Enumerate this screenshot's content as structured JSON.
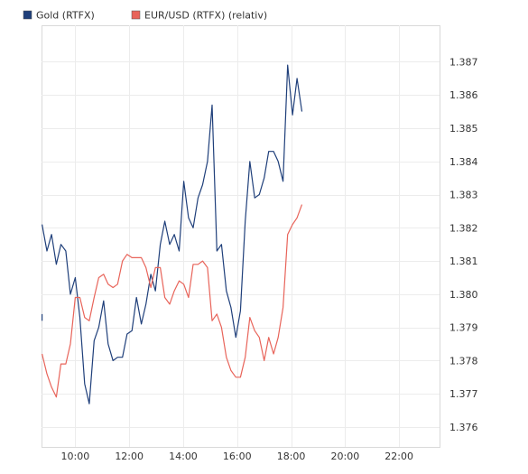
{
  "chart_data": {
    "type": "line",
    "title": "",
    "xlabel": "",
    "ylabel": "",
    "legend_position": "top-left",
    "grid": true,
    "xlim": [
      8.75,
      23.5
    ],
    "ylim": [
      1.3754,
      1.3881
    ],
    "x_ticks": [
      10,
      12,
      14,
      16,
      18,
      20,
      22
    ],
    "x_tick_labels": [
      "10:00",
      "12:00",
      "14:00",
      "16:00",
      "18:00",
      "20:00",
      "22:00"
    ],
    "y_ticks": [
      1.376,
      1.377,
      1.378,
      1.379,
      1.38,
      1.381,
      1.382,
      1.383,
      1.384,
      1.385,
      1.386,
      1.387
    ],
    "y_tick_labels": [
      "1.376",
      "1.377",
      "1.378",
      "1.379",
      "1.380",
      "1.381",
      "1.382",
      "1.383",
      "1.384",
      "1.385",
      "1.386",
      "1.387"
    ],
    "series": [
      {
        "name": "Gold (RTFX)",
        "color": "#1f3f7a",
        "segments": [
          [
            [
              8.77,
              1.3792
            ],
            [
              8.77,
              1.3794
            ]
          ],
          [
            [
              8.77,
              1.3821
            ],
            [
              8.95,
              1.3813
            ],
            [
              9.12,
              1.3818
            ],
            [
              9.3,
              1.3809
            ],
            [
              9.47,
              1.3815
            ],
            [
              9.65,
              1.3813
            ],
            [
              9.82,
              1.38
            ],
            [
              10.0,
              1.3805
            ],
            [
              10.17,
              1.3793
            ],
            [
              10.35,
              1.3773
            ],
            [
              10.52,
              1.3767
            ],
            [
              10.7,
              1.3786
            ],
            [
              10.87,
              1.379
            ],
            [
              11.05,
              1.3798
            ],
            [
              11.22,
              1.3785
            ],
            [
              11.4,
              1.378
            ],
            [
              11.57,
              1.3781
            ],
            [
              11.75,
              1.3781
            ],
            [
              11.92,
              1.3788
            ],
            [
              12.1,
              1.3789
            ],
            [
              12.27,
              1.3799
            ],
            [
              12.45,
              1.3791
            ],
            [
              12.62,
              1.3797
            ],
            [
              12.8,
              1.3806
            ],
            [
              12.97,
              1.3801
            ],
            [
              13.15,
              1.3815
            ],
            [
              13.32,
              1.3822
            ],
            [
              13.5,
              1.3815
            ],
            [
              13.67,
              1.3818
            ],
            [
              13.85,
              1.3813
            ],
            [
              14.02,
              1.3834
            ],
            [
              14.2,
              1.3823
            ],
            [
              14.37,
              1.382
            ],
            [
              14.55,
              1.3829
            ],
            [
              14.72,
              1.3833
            ],
            [
              14.9,
              1.384
            ],
            [
              15.07,
              1.3857
            ],
            [
              15.25,
              1.3813
            ],
            [
              15.42,
              1.3815
            ],
            [
              15.6,
              1.3801
            ],
            [
              15.77,
              1.3796
            ],
            [
              15.95,
              1.3787
            ],
            [
              16.12,
              1.3795
            ],
            [
              16.3,
              1.3822
            ],
            [
              16.47,
              1.384
            ],
            [
              16.65,
              1.3829
            ],
            [
              16.82,
              1.383
            ],
            [
              17.0,
              1.3835
            ],
            [
              17.17,
              1.3843
            ],
            [
              17.35,
              1.3843
            ],
            [
              17.52,
              1.384
            ],
            [
              17.7,
              1.3834
            ],
            [
              17.87,
              1.3869
            ],
            [
              18.05,
              1.3854
            ],
            [
              18.22,
              1.3865
            ],
            [
              18.4,
              1.3855
            ]
          ]
        ]
      },
      {
        "name": "EUR/USD (RTFX) (relativ)",
        "color": "#e8645a",
        "segments": [
          [
            [
              8.77,
              1.3782
            ],
            [
              8.95,
              1.3776
            ],
            [
              9.12,
              1.3772
            ],
            [
              9.3,
              1.3769
            ],
            [
              9.47,
              1.3779
            ],
            [
              9.65,
              1.3779
            ],
            [
              9.82,
              1.3785
            ],
            [
              10.0,
              1.3799
            ],
            [
              10.17,
              1.3799
            ],
            [
              10.35,
              1.3793
            ],
            [
              10.52,
              1.3792
            ],
            [
              10.7,
              1.3799
            ],
            [
              10.87,
              1.3805
            ],
            [
              11.05,
              1.3806
            ],
            [
              11.22,
              1.3803
            ],
            [
              11.4,
              1.3802
            ],
            [
              11.57,
              1.3803
            ],
            [
              11.75,
              1.381
            ],
            [
              11.92,
              1.3812
            ],
            [
              12.1,
              1.3811
            ],
            [
              12.27,
              1.3811
            ],
            [
              12.45,
              1.3811
            ],
            [
              12.62,
              1.3808
            ],
            [
              12.8,
              1.3802
            ],
            [
              12.97,
              1.3808
            ],
            [
              13.15,
              1.3808
            ],
            [
              13.32,
              1.3799
            ],
            [
              13.5,
              1.3797
            ],
            [
              13.67,
              1.3801
            ],
            [
              13.85,
              1.3804
            ],
            [
              14.02,
              1.3803
            ],
            [
              14.2,
              1.3799
            ],
            [
              14.37,
              1.3809
            ],
            [
              14.55,
              1.3809
            ],
            [
              14.72,
              1.381
            ],
            [
              14.9,
              1.3808
            ],
            [
              15.07,
              1.3792
            ],
            [
              15.25,
              1.3794
            ],
            [
              15.42,
              1.379
            ],
            [
              15.6,
              1.3781
            ],
            [
              15.77,
              1.3777
            ],
            [
              15.95,
              1.3775
            ],
            [
              16.12,
              1.3775
            ],
            [
              16.3,
              1.3781
            ],
            [
              16.47,
              1.3793
            ],
            [
              16.65,
              1.3789
            ],
            [
              16.82,
              1.3787
            ],
            [
              17.0,
              1.378
            ],
            [
              17.17,
              1.3787
            ],
            [
              17.35,
              1.3782
            ],
            [
              17.52,
              1.3787
            ],
            [
              17.7,
              1.3796
            ],
            [
              17.87,
              1.3818
            ],
            [
              18.05,
              1.3821
            ],
            [
              18.22,
              1.3823
            ],
            [
              18.4,
              1.3827
            ]
          ]
        ]
      }
    ]
  }
}
